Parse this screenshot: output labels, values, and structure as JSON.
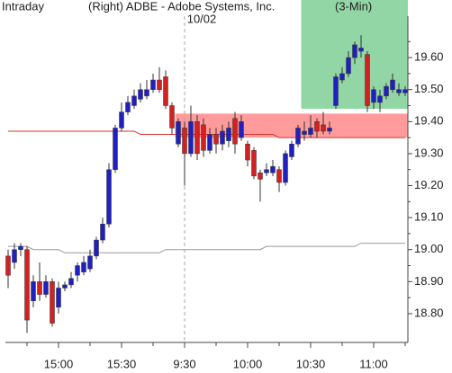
{
  "chart_data": {
    "type": "candlestick",
    "title": "Intraday",
    "subtitle": "(Right)  ADBE - Adobe Systems, Inc.",
    "interval": "(3-Min)",
    "annotation": {
      "text": "10/02",
      "at": "9:30"
    },
    "categories": [
      null,
      null,
      null,
      null,
      null,
      null,
      null,
      null,
      "15:00",
      null,
      null,
      null,
      null,
      null,
      null,
      null,
      null,
      null,
      "15:30",
      null,
      null,
      null,
      null,
      null,
      null,
      null,
      null,
      null,
      "9:30",
      null,
      null,
      null,
      null,
      null,
      null,
      null,
      null,
      null,
      "10:00",
      null,
      null,
      null,
      null,
      null,
      null,
      null,
      null,
      null,
      "10:30",
      null,
      null,
      null,
      null,
      null,
      null,
      null,
      null,
      null,
      "11:00",
      null,
      null,
      null,
      null,
      null
    ],
    "open": [
      18.98,
      18.96,
      19.0,
      19.0,
      18.84,
      18.9,
      18.86,
      18.9,
      18.82,
      18.88,
      18.89,
      18.92,
      18.93,
      18.94,
      18.98,
      19.03,
      19.08,
      19.25,
      19.38,
      19.43,
      19.45,
      19.47,
      19.48,
      19.5,
      19.53,
      19.54,
      19.45,
      19.33,
      19.38,
      19.3,
      19.4,
      19.39,
      19.31,
      19.36,
      19.33,
      19.34,
      19.41,
      19.35,
      19.33,
      19.31,
      19.24,
      19.24,
      19.24,
      19.25,
      19.21,
      19.29,
      19.33,
      19.36,
      19.36,
      19.4,
      19.39,
      19.37,
      19.45,
      19.53,
      19.55,
      19.6,
      19.62,
      19.61,
      19.46,
      19.46,
      19.48,
      19.5,
      19.49,
      19.49
    ],
    "high": [
      19.0,
      19.02,
      19.02,
      19.01,
      18.92,
      18.96,
      18.92,
      18.91,
      18.9,
      18.9,
      18.93,
      18.96,
      18.98,
      19.0,
      19.04,
      19.1,
      19.27,
      19.39,
      19.46,
      19.48,
      19.5,
      19.52,
      19.53,
      19.55,
      19.57,
      19.56,
      19.46,
      19.41,
      19.4,
      19.45,
      19.42,
      19.41,
      19.38,
      19.38,
      19.39,
      19.4,
      19.43,
      19.42,
      19.34,
      19.32,
      19.25,
      19.27,
      19.28,
      19.26,
      19.31,
      19.34,
      19.39,
      19.4,
      19.42,
      19.41,
      19.43,
      19.4,
      19.55,
      19.57,
      19.62,
      19.65,
      19.67,
      19.62,
      19.51,
      19.5,
      19.52,
      19.55,
      19.52,
      19.51
    ],
    "low": [
      18.88,
      18.94,
      18.98,
      18.74,
      18.82,
      18.84,
      18.85,
      18.76,
      18.8,
      18.87,
      18.88,
      18.9,
      18.92,
      18.93,
      18.97,
      19.02,
      19.07,
      19.24,
      19.37,
      19.42,
      19.44,
      19.46,
      19.47,
      19.49,
      19.49,
      19.44,
      19.36,
      19.32,
      19.2,
      19.29,
      19.28,
      19.29,
      19.3,
      19.3,
      19.31,
      19.32,
      19.3,
      19.34,
      19.26,
      19.22,
      19.15,
      19.23,
      19.23,
      19.18,
      19.2,
      19.28,
      19.32,
      19.34,
      19.35,
      19.35,
      19.36,
      19.36,
      19.44,
      19.52,
      19.54,
      19.58,
      19.6,
      19.43,
      19.44,
      19.43,
      19.47,
      19.49,
      19.48,
      19.48
    ],
    "close": [
      18.92,
      19.0,
      19.01,
      18.78,
      18.9,
      18.86,
      18.9,
      18.77,
      18.88,
      18.89,
      18.91,
      18.95,
      18.96,
      18.98,
      19.03,
      19.08,
      19.25,
      19.38,
      19.43,
      19.46,
      19.48,
      19.5,
      19.5,
      19.53,
      19.5,
      19.45,
      19.38,
      19.4,
      19.3,
      19.4,
      19.3,
      19.31,
      19.36,
      19.33,
      19.37,
      19.38,
      19.33,
      19.4,
      19.28,
      19.23,
      19.22,
      19.25,
      19.26,
      19.21,
      19.3,
      19.33,
      19.38,
      19.37,
      19.38,
      19.37,
      19.37,
      19.38,
      19.54,
      19.55,
      19.6,
      19.64,
      19.63,
      19.45,
      19.5,
      19.48,
      19.51,
      19.53,
      19.5,
      19.5
    ],
    "up_color": "#2020c0",
    "down_color": "#d42020",
    "overlays": [
      {
        "color": "#d83030",
        "values": [
          19.37,
          19.37,
          19.37,
          19.37,
          19.37,
          19.37,
          19.37,
          19.37,
          19.37,
          19.37,
          19.37,
          19.37,
          19.37,
          19.37,
          19.37,
          19.37,
          19.37,
          19.37,
          19.37,
          19.37,
          19.37,
          19.36,
          19.36,
          19.36,
          19.36,
          19.36,
          19.36,
          19.36,
          19.36,
          19.36,
          19.36,
          19.36,
          19.36,
          19.36,
          19.36,
          19.36,
          19.36,
          19.36,
          19.36,
          19.36,
          19.36,
          19.36,
          19.36,
          19.35,
          19.35,
          19.35,
          19.35,
          19.35,
          19.35,
          19.35,
          19.35,
          19.35,
          19.35,
          19.35,
          19.35,
          19.35,
          19.35,
          19.35,
          19.35,
          19.35,
          19.35,
          19.35,
          19.35,
          19.35
        ]
      },
      {
        "color": "#999999",
        "values": [
          19.01,
          19.01,
          19.01,
          19.01,
          19.0,
          19.0,
          19.0,
          19.0,
          19.0,
          18.99,
          18.99,
          18.99,
          18.99,
          18.99,
          18.99,
          18.99,
          18.99,
          18.99,
          18.99,
          18.99,
          18.99,
          18.99,
          18.99,
          18.99,
          18.99,
          19.0,
          19.0,
          19.0,
          19.0,
          19.0,
          19.0,
          19.0,
          19.0,
          19.0,
          19.0,
          19.0,
          19.0,
          19.0,
          19.0,
          19.0,
          19.0,
          19.01,
          19.01,
          19.01,
          19.01,
          19.01,
          19.01,
          19.01,
          19.01,
          19.01,
          19.01,
          19.01,
          19.01,
          19.01,
          19.01,
          19.01,
          19.02,
          19.02,
          19.02,
          19.02,
          19.02,
          19.02,
          19.02,
          19.02
        ]
      }
    ],
    "zones": [
      {
        "color": "#ff8a8a",
        "from": "9:30",
        "ylim": [
          19.35,
          19.425
        ]
      },
      {
        "color": "#7fcf95",
        "from": "10:30",
        "ylim": [
          19.44,
          19.78
        ]
      }
    ],
    "ylim": [
      18.71,
      19.78
    ],
    "yticks": [
      {
        "value": 18.8,
        "label": "18.80"
      },
      {
        "value": 18.9,
        "label": "18.90"
      },
      {
        "value": 19.0,
        "label": "19.00"
      },
      {
        "value": 19.1,
        "label": "19.10"
      },
      {
        "value": 19.2,
        "label": "19.20"
      },
      {
        "value": 19.3,
        "label": "19.30"
      },
      {
        "value": 19.4,
        "label": "19.40"
      },
      {
        "value": 19.5,
        "label": "19.50"
      },
      {
        "value": 19.6,
        "label": "19.60"
      }
    ]
  }
}
